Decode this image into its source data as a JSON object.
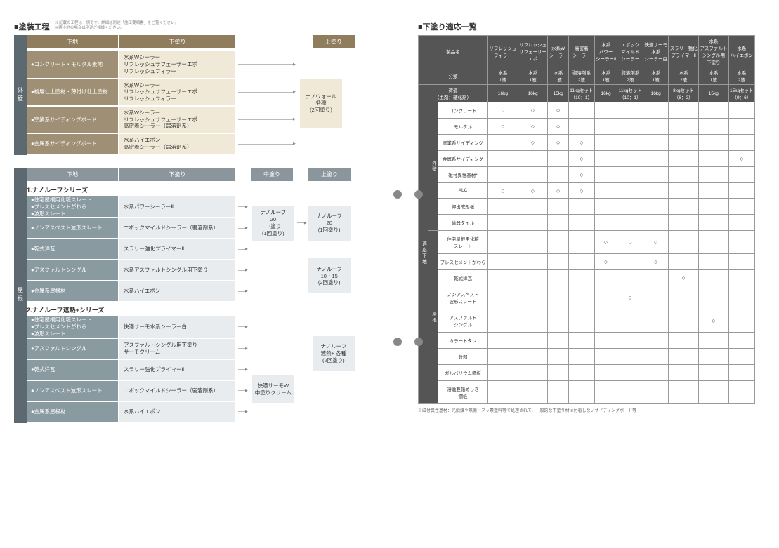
{
  "leftTitle": "■塗装工程",
  "leftSubtitle": "※記載の工程は一例です。詳細は別途「施工要領書」をご覧ください。\n※寒冷地の場合は別途ご相談ください。",
  "rightTitle": "■下塗り適応一覧",
  "colors": {
    "headBrown": "#8f7d5e",
    "headGray": "#8b969c",
    "vtab": "#5d6970",
    "substrateBrown": "#9f8f74",
    "substrateGray": "#8a9aa1",
    "primerCream": "#f0e9d8",
    "primerPale": "#e8ecee",
    "tableHead": "#555555",
    "dot": "#888888"
  },
  "headers": {
    "substrate": "下地",
    "primer": "下塗り",
    "mid": "中塗り",
    "top": "上塗り"
  },
  "vtabs": {
    "wall": "外壁",
    "roof": "屋根"
  },
  "wallFlow": {
    "rows": [
      {
        "substrate": [
          "●コンクリート・モルタル素地"
        ],
        "primer": [
          "水系Wシーラー",
          "リフレッシュサフェーサーエポ",
          "リフレッシュフィラー"
        ]
      },
      {
        "substrate": [
          "●複層仕上塗材・薄付け仕上塗材"
        ],
        "primer": [
          "水系Wシーラー",
          "リフレッシュサフェーサーエポ",
          "リフレッシュフィラー"
        ]
      },
      {
        "substrate": [
          "●窯業系サイディングボード"
        ],
        "primer": [
          "水系Wシーラー",
          "リフレッシュサフェーサーエポ",
          "高密着シーラー（弱溶剤系）"
        ]
      },
      {
        "substrate": [
          "●金属系サイディングボード"
        ],
        "primer": [
          "水系ハイエポン",
          "高密着シーラー（弱溶剤系）"
        ]
      }
    ],
    "top": [
      "ナノウォール",
      "各種",
      "(2回塗り)"
    ]
  },
  "roofSeries1": {
    "title": "1.ナノルーフシリーズ",
    "rows": [
      {
        "substrate": [
          "●住宅屋根用化粧スレート",
          "●プレスセメントがわら",
          "●波形スレート"
        ],
        "primer": [
          "水系パワーシーラーⅡ"
        ]
      },
      {
        "substrate": [
          "●ノンアスベスト波形スレート"
        ],
        "primer": [
          "エポックマイルドシーラー（弱溶剤系）"
        ]
      },
      {
        "substrate": [
          "●乾式洋瓦"
        ],
        "primer": [
          "スラリー強化プライマーⅡ"
        ]
      },
      {
        "substrate": [
          "●アスファルトシングル"
        ],
        "primer": [
          "水系アスファルトシングル用下塗り"
        ]
      },
      {
        "substrate": [
          "●金属系屋根材"
        ],
        "primer": [
          "水系ハイエポン"
        ]
      }
    ],
    "mid": [
      "ナノルーフ",
      "20",
      "中塗り",
      "(1回塗り)"
    ],
    "top1": [
      "ナノルーフ",
      "20",
      "(1回塗り)"
    ],
    "top2": [
      "ナノルーフ",
      "10・15",
      "(2回塗り)"
    ]
  },
  "roofSeries2": {
    "title": "2.ナノルーフ遮熱+シリーズ",
    "rows": [
      {
        "substrate": [
          "●住宅屋根用化粧スレート",
          "●プレスセメントがわら",
          "●波形スレート"
        ],
        "primer": [
          "快適サーモ水系シーラー白"
        ]
      },
      {
        "substrate": [
          "●アスファルトシングル"
        ],
        "primer": [
          "アスファルトシングル用下塗り",
          "サーモクリーム"
        ]
      },
      {
        "substrate": [
          "●乾式洋瓦"
        ],
        "primer": [
          "スラリー強化プライマーⅡ"
        ]
      },
      {
        "substrate": [
          "●ノンアスベスト波形スレート"
        ],
        "primer": [
          "エポックマイルドシーラー（弱溶剤系）"
        ]
      },
      {
        "substrate": [
          "●金属系屋根材"
        ],
        "primer": [
          "水系ハイエポン"
        ]
      }
    ],
    "mid": [
      "快適サーモW",
      "中塗りクリーム"
    ],
    "top": [
      "ナノルーフ",
      "遮熱+ 各種",
      "(2回塗り)"
    ]
  },
  "compat": {
    "head1": [
      "製品名",
      "リフレッシュ\nフィラー",
      "リフレッシュ\nサフェーサー\nエポ",
      "水系W\nシーラー",
      "高密着\nシーラー",
      "水系\nパワー\nシーラーⅡ",
      "エポック\nマイルド\nシーラー",
      "快適サーモ\n水系\nシーラー白",
      "スラリー強化\nプライマーⅡ",
      "水系\nアスファルト\nシングル用\n下塗り",
      "水系\nハイエポン"
    ],
    "head2": [
      "分類",
      "水系\n1液",
      "水系\n1液",
      "水系\n1液",
      "弱溶剤系\n2液",
      "水系\n1液",
      "弱溶剤系\n2液",
      "水系\n1液",
      "水系\n2液",
      "水系\n1液",
      "水系\n2液"
    ],
    "head3": [
      "荷姿\n（主剤：硬化剤）",
      "16kg",
      "16kg",
      "15kg",
      "11kgセット\n（10：1）",
      "16kg",
      "11kgセット\n（10：1）",
      "16kg",
      "8kgセット\n（6：2）",
      "15kg",
      "15kgセット\n（9：6）"
    ],
    "sideLabel": "適応下地",
    "groups": [
      {
        "label": "外壁",
        "rows": [
          {
            "name": "コンクリート",
            "marks": [
              "○",
              "○",
              "○",
              "",
              "",
              "",
              "",
              "",
              "",
              ""
            ]
          },
          {
            "name": "モルタル",
            "marks": [
              "○",
              "○",
              "○",
              "",
              "",
              "",
              "",
              "",
              "",
              ""
            ]
          },
          {
            "name": "窯業系サイディング",
            "marks": [
              "",
              "○",
              "○",
              "○",
              "",
              "",
              "",
              "",
              "",
              ""
            ]
          },
          {
            "name": "金属系サイディング",
            "marks": [
              "",
              "",
              "",
              "○",
              "",
              "",
              "",
              "",
              "",
              "○"
            ]
          },
          {
            "name": "磁付異性基材*",
            "marks": [
              "",
              "",
              "",
              "○",
              "",
              "",
              "",
              "",
              "",
              ""
            ]
          },
          {
            "name": "ALC",
            "marks": [
              "○",
              "○",
              "○",
              "○",
              "",
              "",
              "",
              "",
              "",
              ""
            ]
          },
          {
            "name": "押出成形板",
            "marks": [
              "",
              "",
              "",
              "",
              "",
              "",
              "",
              "",
              "",
              ""
            ]
          },
          {
            "name": "磁器タイル",
            "marks": [
              "",
              "",
              "",
              "",
              "",
              "",
              "",
              "",
              "",
              ""
            ]
          }
        ]
      },
      {
        "label": "屋根",
        "rows": [
          {
            "name": "住宅屋根用化粧\nスレート",
            "marks": [
              "",
              "",
              "",
              "",
              "○",
              "○",
              "○",
              "",
              "",
              ""
            ]
          },
          {
            "name": "プレスセメントがわら",
            "marks": [
              "",
              "",
              "",
              "",
              "○",
              "",
              "○",
              "",
              "",
              ""
            ]
          },
          {
            "name": "乾式洋瓦",
            "marks": [
              "",
              "",
              "",
              "",
              "",
              "",
              "",
              "○",
              "",
              ""
            ]
          },
          {
            "name": "ノンアスベスト\n波形スレート",
            "marks": [
              "",
              "",
              "",
              "",
              "",
              "○",
              "",
              "",
              "",
              ""
            ]
          },
          {
            "name": "アスファルト\nシングル",
            "marks": [
              "",
              "",
              "",
              "",
              "",
              "",
              "",
              "",
              "○",
              ""
            ]
          },
          {
            "name": "カラートタン",
            "marks": [
              "",
              "",
              "",
              "",
              "",
              "",
              "",
              "",
              "",
              ""
            ]
          },
          {
            "name": "鉄部",
            "marks": [
              "",
              "",
              "",
              "",
              "",
              "",
              "",
              "",
              "",
              ""
            ]
          },
          {
            "name": "ガルバリウム鋼板",
            "marks": [
              "",
              "",
              "",
              "",
              "",
              "",
              "",
              "",
              "",
              ""
            ]
          },
          {
            "name": "溶融亜鉛めっき\n鋼板",
            "marks": [
              "",
              "",
              "",
              "",
              "",
              "",
              "",
              "",
              "",
              ""
            ]
          }
        ]
      }
    ],
    "footnote": "※磁付異性基材：光触媒や無機・フッ素塗料等で処理されて、一般的な下塗り材は付着しないサイディングボード等"
  }
}
